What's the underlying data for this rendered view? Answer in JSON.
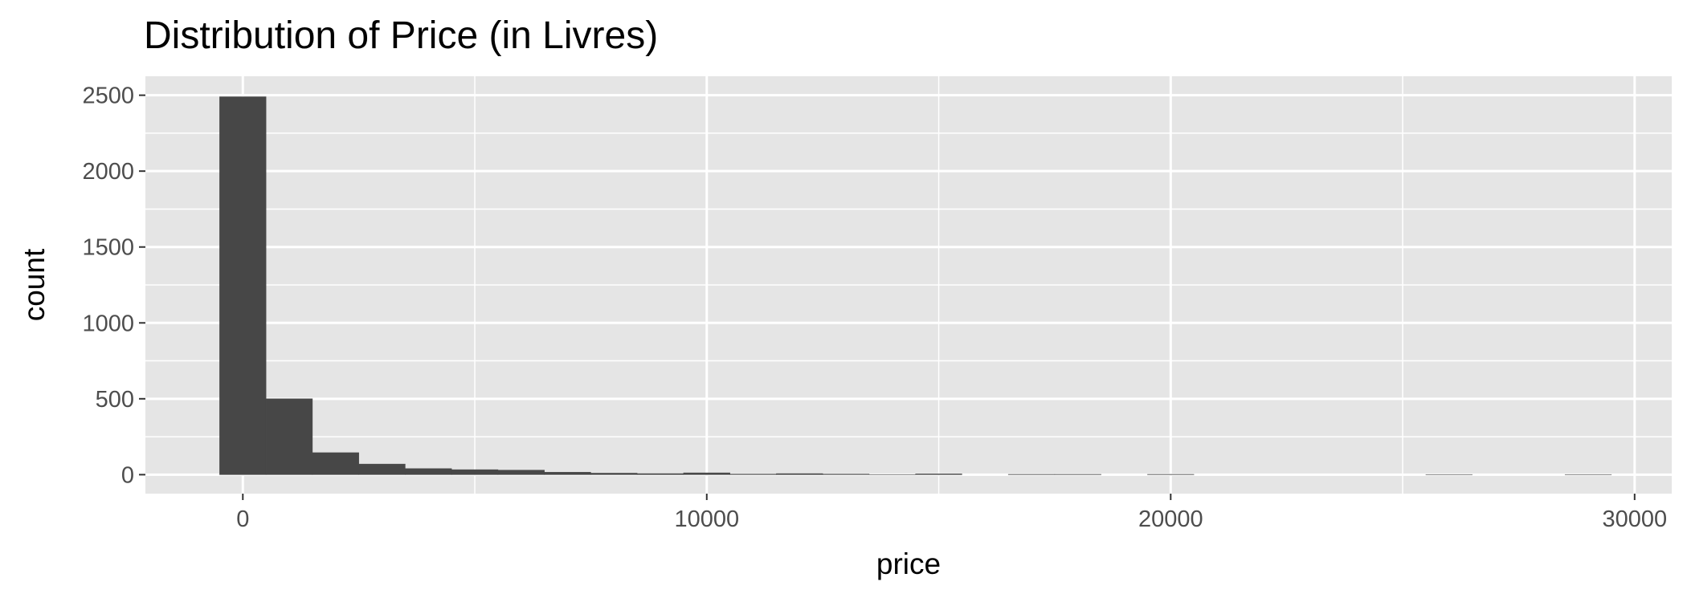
{
  "chart_data": {
    "type": "bar",
    "title": "Distribution of Price (in Livres)",
    "xlabel": "price",
    "ylabel": "count",
    "xlim": [
      -2100,
      30800
    ],
    "ylim": [
      -125,
      2625
    ],
    "xticks": [
      0,
      10000,
      20000,
      30000
    ],
    "yticks": [
      0,
      500,
      1000,
      1500,
      2000,
      2500
    ],
    "bin_width": 1000,
    "bins": [
      {
        "x0": -500,
        "x1": 500,
        "count": 2490
      },
      {
        "x0": 500,
        "x1": 1500,
        "count": 500
      },
      {
        "x0": 1500,
        "x1": 2500,
        "count": 145
      },
      {
        "x0": 2500,
        "x1": 3500,
        "count": 70
      },
      {
        "x0": 3500,
        "x1": 4500,
        "count": 40
      },
      {
        "x0": 4500,
        "x1": 5500,
        "count": 33
      },
      {
        "x0": 5500,
        "x1": 6500,
        "count": 30
      },
      {
        "x0": 6500,
        "x1": 7500,
        "count": 16
      },
      {
        "x0": 7500,
        "x1": 8500,
        "count": 10
      },
      {
        "x0": 8500,
        "x1": 9500,
        "count": 7
      },
      {
        "x0": 9500,
        "x1": 10500,
        "count": 12
      },
      {
        "x0": 10500,
        "x1": 11500,
        "count": 4
      },
      {
        "x0": 11500,
        "x1": 12500,
        "count": 7
      },
      {
        "x0": 12500,
        "x1": 13500,
        "count": 4
      },
      {
        "x0": 13500,
        "x1": 14500,
        "count": 1
      },
      {
        "x0": 14500,
        "x1": 15500,
        "count": 5
      },
      {
        "x0": 15500,
        "x1": 16500,
        "count": 0
      },
      {
        "x0": 16500,
        "x1": 17500,
        "count": 2
      },
      {
        "x0": 17500,
        "x1": 18500,
        "count": 2
      },
      {
        "x0": 18500,
        "x1": 19500,
        "count": 0
      },
      {
        "x0": 19500,
        "x1": 20500,
        "count": 2
      },
      {
        "x0": 20500,
        "x1": 21500,
        "count": 0
      },
      {
        "x0": 21500,
        "x1": 22500,
        "count": 0
      },
      {
        "x0": 22500,
        "x1": 23500,
        "count": 0
      },
      {
        "x0": 23500,
        "x1": 24500,
        "count": 0
      },
      {
        "x0": 24500,
        "x1": 25500,
        "count": 0
      },
      {
        "x0": 25500,
        "x1": 26500,
        "count": 1
      },
      {
        "x0": 26500,
        "x1": 27500,
        "count": 0
      },
      {
        "x0": 27500,
        "x1": 28500,
        "count": 0
      },
      {
        "x0": 28500,
        "x1": 29500,
        "count": 1
      }
    ],
    "grid": true,
    "colors": {
      "panel": "#e5e5e5",
      "grid": "#ffffff",
      "bar": "#474747",
      "tick_text": "#4d4d4d",
      "tick_mark": "#333333"
    }
  }
}
